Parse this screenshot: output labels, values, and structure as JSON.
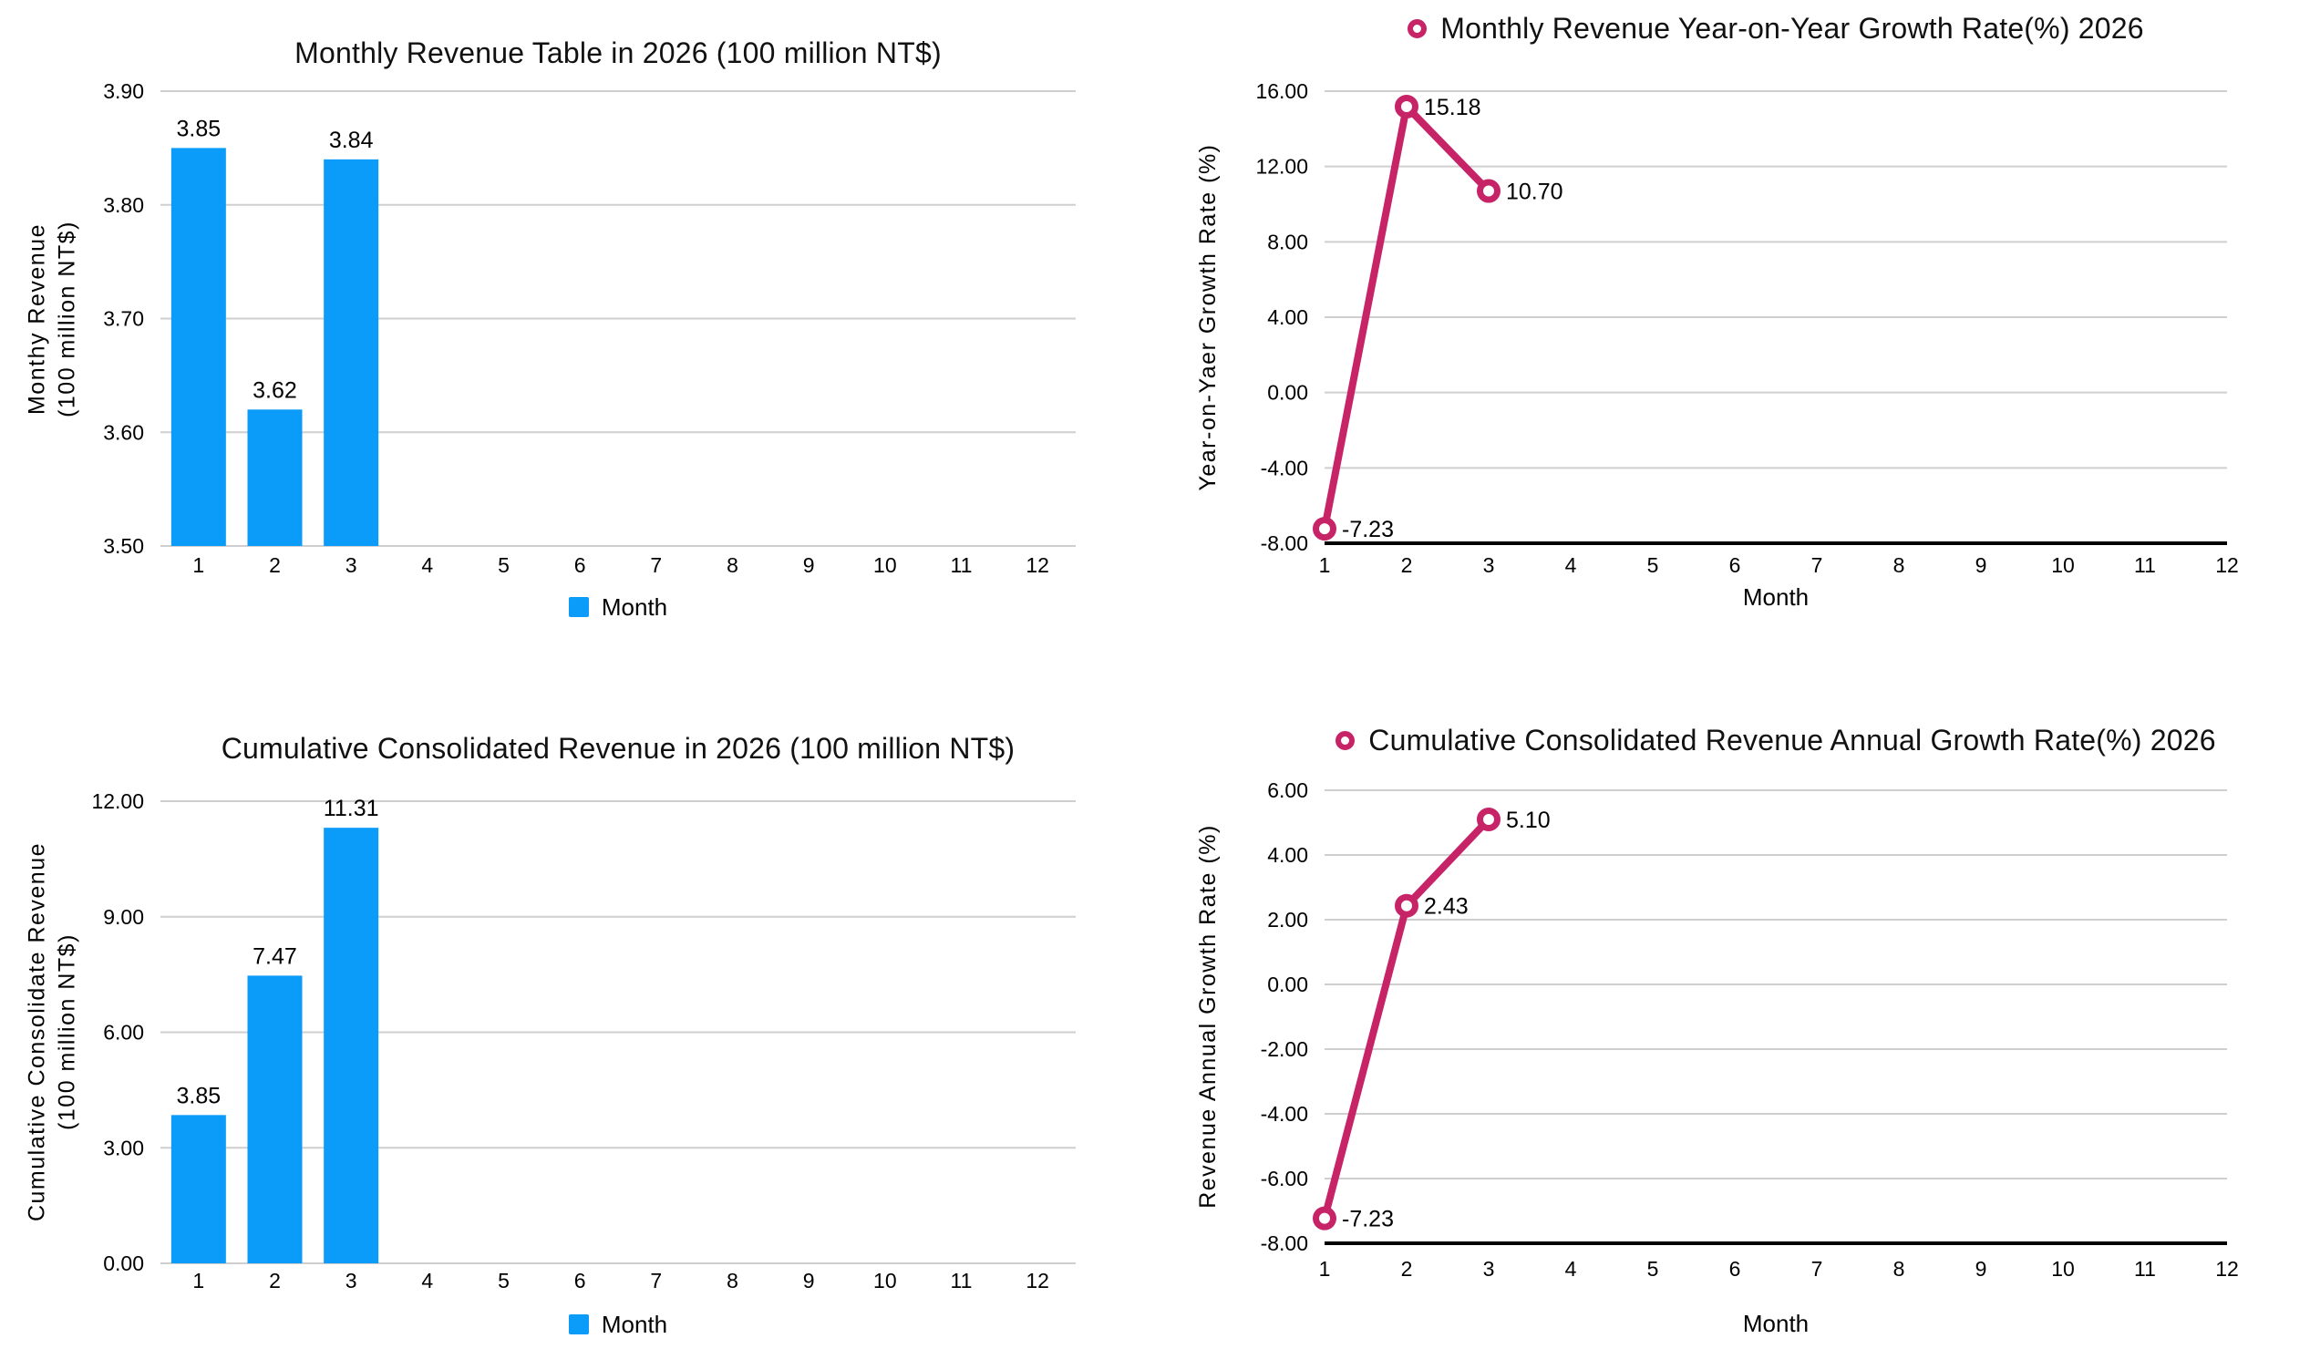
{
  "page": {
    "background_color": "#ffffff"
  },
  "colors": {
    "bar_blue": "#0B9BF9",
    "line_magenta": "#C72367",
    "gridline": "#CFCFCF",
    "axis_black": "#000000"
  },
  "chart_data": [
    {
      "type": "bar",
      "title": "Monthly Revenue Table in 2026 (100 million NT$)",
      "ylabel": "Monthy Revenue\n(100 million NT$)",
      "xlabel": "",
      "legend_label": "Month",
      "legend_position": "bottom",
      "grid": true,
      "categories": [
        "1",
        "2",
        "3",
        "4",
        "5",
        "6",
        "7",
        "8",
        "9",
        "10",
        "11",
        "12"
      ],
      "values": [
        3.85,
        3.62,
        3.84
      ],
      "data_labels": [
        "3.85",
        "3.62",
        "3.84"
      ],
      "ylim": [
        3.5,
        3.9
      ],
      "yticks": [
        3.9,
        3.8,
        3.7,
        3.6,
        3.5
      ],
      "ytick_labels": [
        "3.90",
        "3.80",
        "3.70",
        "3.60",
        "3.50"
      ],
      "color": "#0B9BF9"
    },
    {
      "type": "line",
      "title": "Monthly Revenue Year-on-Year Growth Rate(%) 2026",
      "ylabel": "Year-on-Yaer Growth Rate (%)",
      "xlabel": "Month",
      "legend_position": "top-title-marker",
      "grid": true,
      "categories": [
        "1",
        "2",
        "3",
        "4",
        "5",
        "6",
        "7",
        "8",
        "9",
        "10",
        "11",
        "12"
      ],
      "values": [
        -7.23,
        15.18,
        10.7
      ],
      "data_labels": [
        "-7.23",
        "15.18",
        "10.70"
      ],
      "ylim": [
        -8,
        16
      ],
      "yticks": [
        16,
        12,
        8,
        4,
        0,
        -4,
        -8
      ],
      "ytick_labels": [
        "16.00",
        "12.00",
        "8.00",
        "4.00",
        "0.00",
        "-4.00",
        "-8.00"
      ],
      "color": "#C72367"
    },
    {
      "type": "bar",
      "title": "Cumulative Consolidated Revenue in 2026 (100 million NT$)",
      "ylabel": "Cumulative Consolidate Revenue\n(100 million NT$)",
      "xlabel": "",
      "legend_label": "Month",
      "legend_position": "bottom",
      "grid": true,
      "categories": [
        "1",
        "2",
        "3",
        "4",
        "5",
        "6",
        "7",
        "8",
        "9",
        "10",
        "11",
        "12"
      ],
      "values": [
        3.85,
        7.47,
        11.31
      ],
      "data_labels": [
        "3.85",
        "7.47",
        "11.31"
      ],
      "ylim": [
        0,
        12
      ],
      "yticks": [
        12,
        9,
        6,
        3,
        0
      ],
      "ytick_labels": [
        "12.00",
        "9.00",
        "6.00",
        "3.00",
        "0.00"
      ],
      "color": "#0B9BF9"
    },
    {
      "type": "line",
      "title": "Cumulative Consolidated Revenue Annual Growth Rate(%) 2026",
      "ylabel": "Revenue Annual Growth Rate (%)",
      "xlabel": "Month",
      "legend_position": "top-title-marker",
      "grid": true,
      "categories": [
        "1",
        "2",
        "3",
        "4",
        "5",
        "6",
        "7",
        "8",
        "9",
        "10",
        "11",
        "12"
      ],
      "values": [
        -7.23,
        2.43,
        5.1
      ],
      "data_labels": [
        "-7.23",
        "2.43",
        "5.10"
      ],
      "ylim": [
        -8,
        6
      ],
      "yticks": [
        6,
        4,
        2,
        0,
        -2,
        -4,
        -6,
        -8
      ],
      "ytick_labels": [
        "6.00",
        "4.00",
        "2.00",
        "0.00",
        "-2.00",
        "-4.00",
        "-6.00",
        "-8.00"
      ],
      "color": "#C72367"
    }
  ]
}
